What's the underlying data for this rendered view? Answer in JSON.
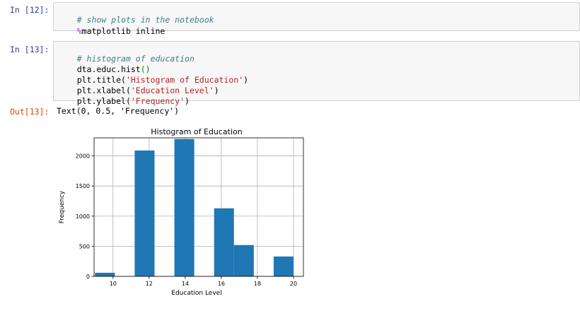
{
  "cells": [
    {
      "prompt": "In [12]:",
      "comment": "# show plots in the notebook",
      "magic_symbol": "%",
      "magic_rest": "matplotlib inline"
    },
    {
      "prompt": "In [13]:",
      "comment": "# histogram of education",
      "l2_name": "dta.educ.hist",
      "l2_paren": "()",
      "l3_pre": "plt.title(",
      "l3_str": "'Histogram of Education'",
      "l3_post": ")",
      "l4_pre": "plt.xlabel(",
      "l4_str": "'Education Level'",
      "l4_post": ")",
      "l5_pre": "plt.ylabel(",
      "l5_str": "'Frequency'",
      "l5_post": ")"
    }
  ],
  "output": {
    "prompt": "Out[13]:",
    "text": "Text(0, 0.5, 'Frequency')"
  },
  "chart_data": {
    "type": "bar",
    "title": "Histogram of Education",
    "xlabel": "Education Level",
    "ylabel": "Frequency",
    "bins": [
      {
        "x0": 9.0,
        "x1": 10.1,
        "count": 60
      },
      {
        "x0": 10.1,
        "x1": 11.2,
        "count": 0
      },
      {
        "x0": 11.2,
        "x1": 12.3,
        "count": 2090
      },
      {
        "x0": 12.3,
        "x1": 13.4,
        "count": 0
      },
      {
        "x0": 13.4,
        "x1": 14.5,
        "count": 2280
      },
      {
        "x0": 14.5,
        "x1": 15.6,
        "count": 0
      },
      {
        "x0": 15.6,
        "x1": 16.7,
        "count": 1130
      },
      {
        "x0": 16.7,
        "x1": 17.8,
        "count": 520
      },
      {
        "x0": 17.8,
        "x1": 18.9,
        "count": 0
      },
      {
        "x0": 18.9,
        "x1": 20.0,
        "count": 330
      }
    ],
    "xlim": [
      8.95,
      20.55
    ],
    "ylim": [
      0,
      2300
    ],
    "xticks": [
      10,
      12,
      14,
      16,
      18,
      20
    ],
    "yticks": [
      0,
      500,
      1000,
      1500,
      2000
    ],
    "grid": true,
    "bar_color": "#1f77b4"
  }
}
